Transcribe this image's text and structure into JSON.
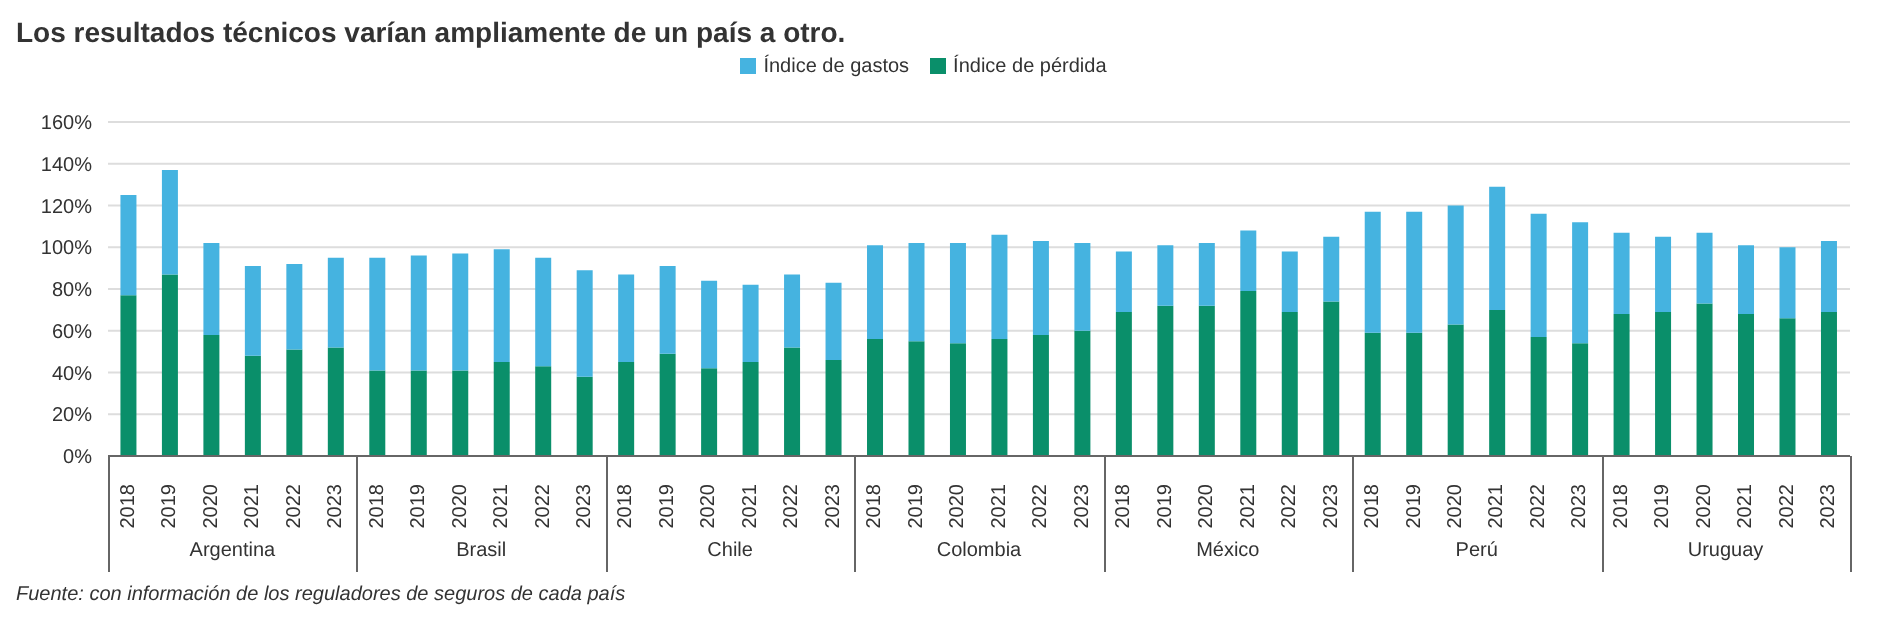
{
  "chart_data": {
    "type": "bar",
    "stacked": true,
    "title": "Los resultados técnicos varían ampliamente de un país a otro.",
    "categories": [
      "2018",
      "2019",
      "2020",
      "2021",
      "2022",
      "2023",
      "2018",
      "2019",
      "2020",
      "2021",
      "2022",
      "2023",
      "2018",
      "2019",
      "2020",
      "2021",
      "2022",
      "2023",
      "2018",
      "2019",
      "2020",
      "2021",
      "2022",
      "2023",
      "2018",
      "2019",
      "2020",
      "2021",
      "2022",
      "2023",
      "2018",
      "2019",
      "2020",
      "2021",
      "2022",
      "2023",
      "2018",
      "2019",
      "2020",
      "2021",
      "2022",
      "2023"
    ],
    "series": [
      {
        "name": "Índice de pérdida",
        "color": "#0a8f6a",
        "values": [
          77,
          87,
          58,
          48,
          51,
          52,
          41,
          41,
          41,
          45,
          43,
          38,
          45,
          49,
          42,
          45,
          52,
          46,
          56,
          55,
          54,
          56,
          58,
          60,
          69,
          72,
          72,
          79,
          69,
          74,
          59,
          59,
          63,
          70,
          57,
          54,
          68,
          69,
          73,
          68,
          66,
          69
        ]
      },
      {
        "name": "Índice de gastos",
        "color": "#45b3e0",
        "values": [
          48,
          50,
          44,
          43,
          41,
          43,
          54,
          55,
          56,
          54,
          52,
          51,
          42,
          42,
          42,
          37,
          35,
          37,
          45,
          47,
          48,
          50,
          45,
          42,
          29,
          29,
          30,
          29,
          29,
          31,
          58,
          58,
          57,
          59,
          59,
          58,
          39,
          36,
          34,
          33,
          34,
          34
        ]
      }
    ],
    "ylim": [
      0,
      160
    ],
    "yticks": [
      {
        "value": 0,
        "label": "0%"
      },
      {
        "value": 20,
        "label": "20%"
      },
      {
        "value": 40,
        "label": "40%"
      },
      {
        "value": 60,
        "label": "60%"
      },
      {
        "value": 80,
        "label": "80%"
      },
      {
        "value": 100,
        "label": "100%"
      },
      {
        "value": 120,
        "label": "120%"
      },
      {
        "value": 140,
        "label": "140%"
      },
      {
        "value": 160,
        "label": "160%"
      }
    ],
    "grid": "y",
    "legend": "top",
    "annotations": [
      "Argentina",
      "Brasil",
      "Chile",
      "Colombia",
      "México",
      "Perú",
      "Uruguay",
      "Fuente: con información de los reguladores de seguros de cada país"
    ]
  }
}
